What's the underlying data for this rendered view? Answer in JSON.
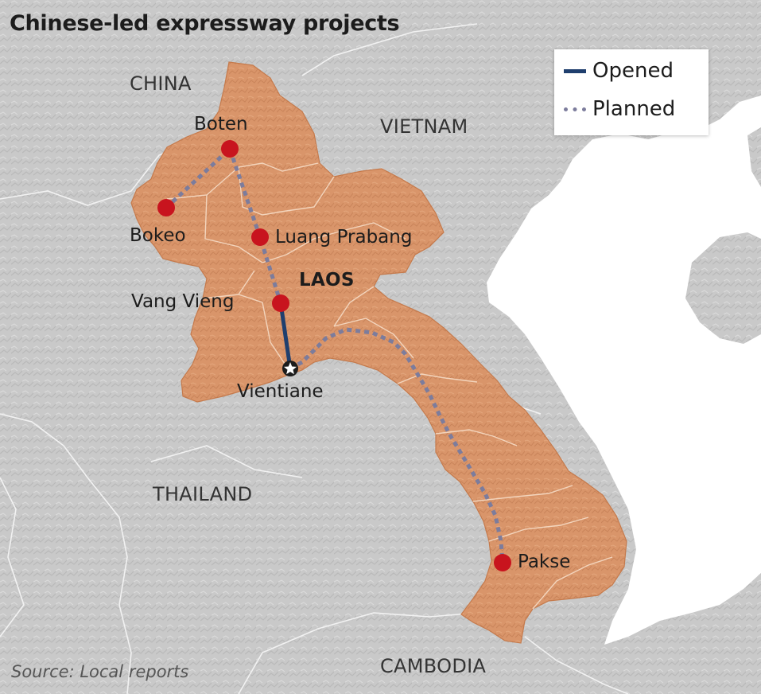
{
  "title": "Chinese-led expressway projects",
  "countries": {
    "china": "CHINA",
    "vietnam": "VIETNAM",
    "laos": "LAOS",
    "thailand": "THAILAND",
    "cambodia": "CAMBODIA"
  },
  "cities": {
    "boten": "Boten",
    "bokeo": "Bokeo",
    "luang_prabang": "Luang Prabang",
    "vang_vieng": "Vang Vieng",
    "vientiane": "Vientiane",
    "pakse": "Pakse"
  },
  "legend": {
    "opened": "Opened",
    "planned": "Planned"
  },
  "source": "Source: Local reports",
  "routes": {
    "opened": [
      "Vang Vieng",
      "Vientiane"
    ],
    "planned": [
      [
        "Bokeo",
        "Boten",
        "Luang Prabang",
        "Vang Vieng"
      ],
      [
        "Vientiane",
        "Pakse"
      ]
    ]
  },
  "colors": {
    "laos_fill": "#d9956a",
    "land": "#c8c8c8",
    "sea": "#ffffff",
    "city_dot": "#c8141e",
    "opened_line": "#1f3f6e",
    "planned_line": "#7c7c9c"
  },
  "icons": {
    "city": "red-dot-icon",
    "capital": "star-icon"
  }
}
